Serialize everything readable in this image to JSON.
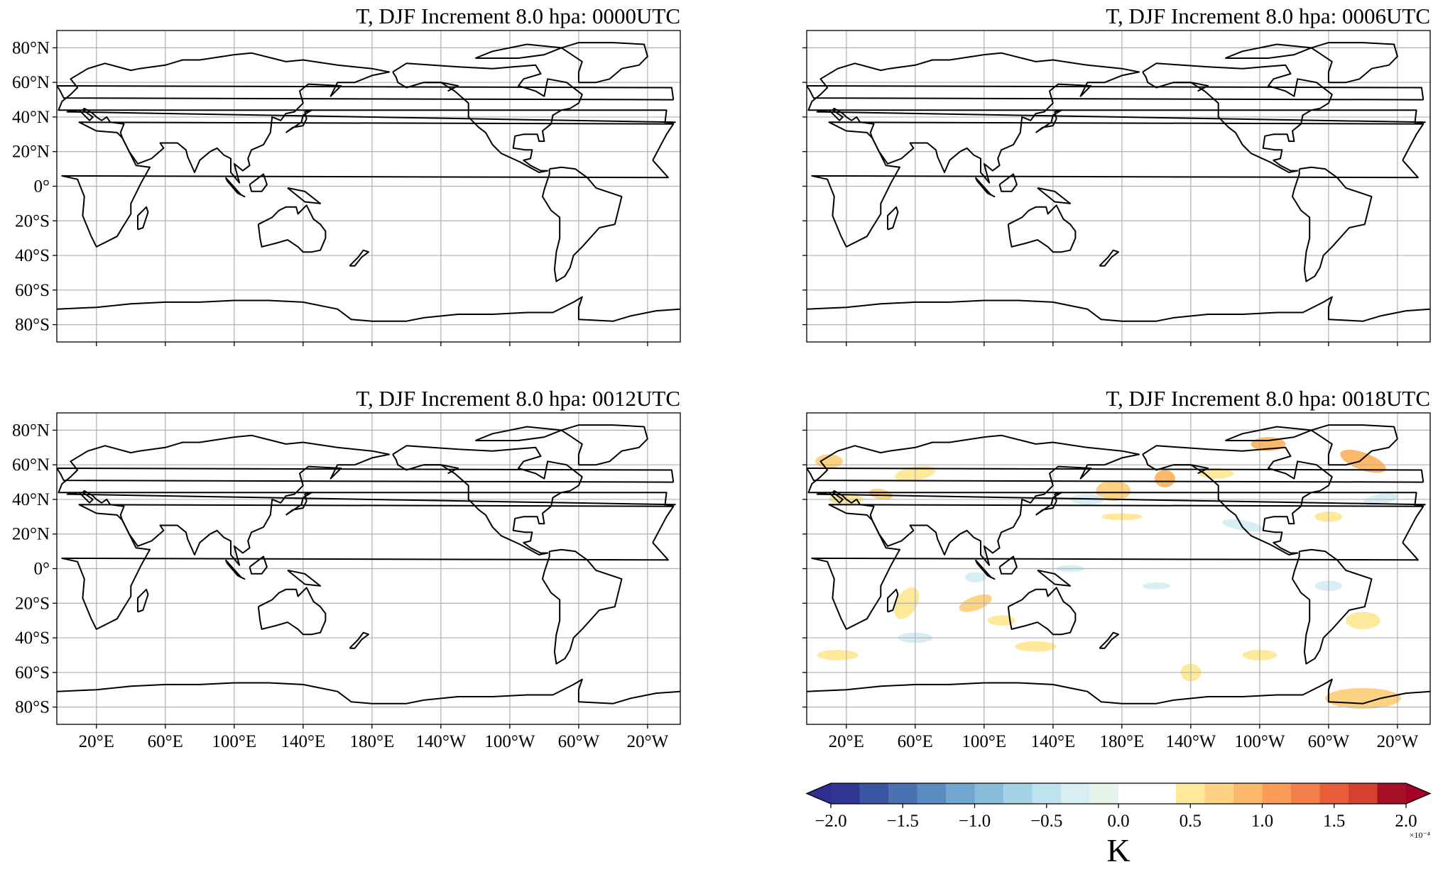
{
  "panels": [
    {
      "title": "T, DJF Increment 8.0 hpa: 0000UTC"
    },
    {
      "title": "T, DJF Increment 8.0 hpa: 0006UTC"
    },
    {
      "title": "T, DJF Increment 8.0 hpa: 0012UTC"
    },
    {
      "title": "T, DJF Increment 8.0 hpa: 0018UTC"
    }
  ],
  "map_extent": {
    "lon": [
      -3,
      359
    ],
    "lat": [
      -90,
      90
    ]
  },
  "lat_ticks": [
    {
      "value": 80,
      "label": "80°N"
    },
    {
      "value": 60,
      "label": "60°N"
    },
    {
      "value": 40,
      "label": "40°N"
    },
    {
      "value": 20,
      "label": "20°N"
    },
    {
      "value": 0,
      "label": "0°"
    },
    {
      "value": -20,
      "label": "20°S"
    },
    {
      "value": -40,
      "label": "40°S"
    },
    {
      "value": -60,
      "label": "60°S"
    },
    {
      "value": -80,
      "label": "80°S"
    }
  ],
  "lon_ticks": [
    {
      "value": 20,
      "label": "20°E"
    },
    {
      "value": 60,
      "label": "60°E"
    },
    {
      "value": 100,
      "label": "100°E"
    },
    {
      "value": 140,
      "label": "140°E"
    },
    {
      "value": 180,
      "label": "180°E"
    },
    {
      "value": -140,
      "label": "140°W"
    },
    {
      "value": -100,
      "label": "100°W"
    },
    {
      "value": -60,
      "label": "60°W"
    },
    {
      "value": -20,
      "label": "20°W"
    }
  ],
  "colorbar": {
    "lim": [
      -2,
      2
    ],
    "ticks": [
      {
        "value": -2,
        "label": "−2.0"
      },
      {
        "value": -1.5,
        "label": "−1.5"
      },
      {
        "value": -1,
        "label": "−1.0"
      },
      {
        "value": -0.5,
        "label": "−0.5"
      },
      {
        "value": 0,
        "label": "0.0"
      },
      {
        "value": 0.5,
        "label": "0.5"
      },
      {
        "value": 1,
        "label": "1.0"
      },
      {
        "value": 1.5,
        "label": "1.5"
      },
      {
        "value": 2,
        "label": "2.0"
      }
    ],
    "label": "K",
    "multiplier": "×10⁻⁴",
    "colors": [
      "#313695",
      "#3b55a5",
      "#4a72b3",
      "#5b8cc1",
      "#70a6cf",
      "#88bcdb",
      "#a4d3e6",
      "#bfe3ee",
      "#d7eef2",
      "#e6f4ec",
      "#ffffff",
      "#ffffff",
      "#fee89a",
      "#fed283",
      "#fdb96b",
      "#fa9c58",
      "#f57e4a",
      "#e75d3a",
      "#d6402e",
      "#a50f26"
    ],
    "extend_colors": [
      "#2b2f8f",
      "#a50026"
    ]
  }
}
